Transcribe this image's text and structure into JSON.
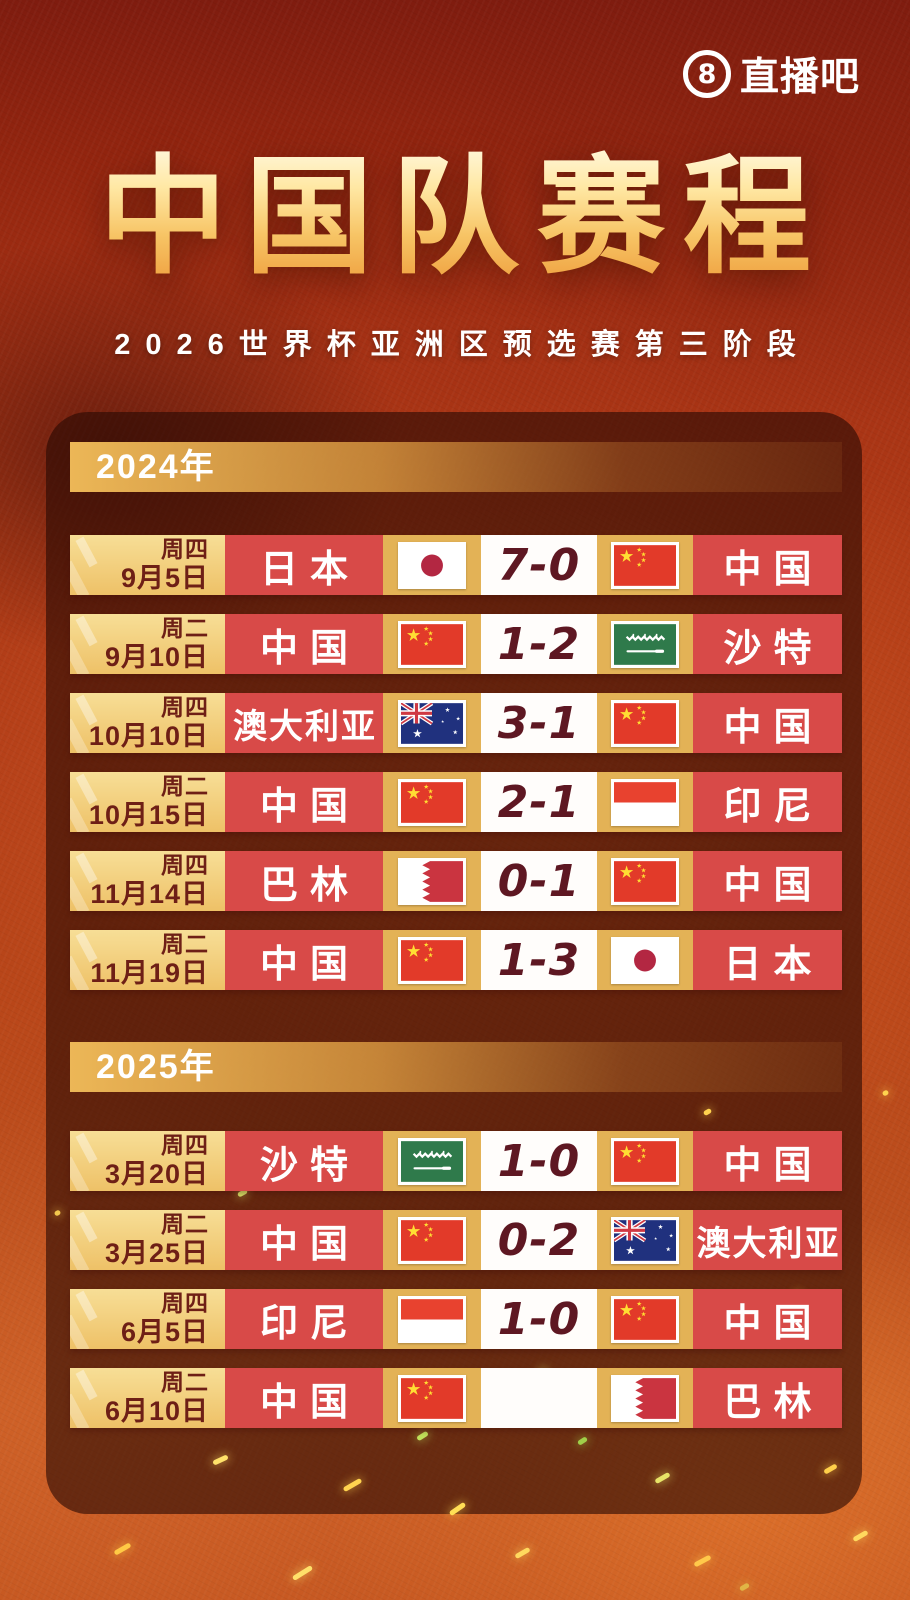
{
  "header": {
    "logo_number": "8",
    "logo_text": "直播吧"
  },
  "title": "中国队赛程",
  "subtitle": "2026世界杯亚洲区预选赛第三阶段",
  "colors": {
    "background_red": "#a53114",
    "panel_maroon": "#5e200e",
    "gold_flag_cell": "#e3b256",
    "gold_date_cell": "#f3d484",
    "team_cell_red": "#d84a48",
    "score_text": "#5e1722",
    "date_text": "#6e1f16",
    "section_bar_gold": "#ecb757",
    "title_gradient_top": "#fff6d8",
    "title_gradient_bottom": "#ee9d3c"
  },
  "sections": [
    {
      "year": "2024年",
      "matches": [
        {
          "weekday": "周四",
          "date": "9月5日",
          "home": "日本",
          "home_flag": "japan",
          "score": "7-0",
          "away_flag": "china",
          "away": "中国"
        },
        {
          "weekday": "周二",
          "date": "9月10日",
          "home": "中国",
          "home_flag": "china",
          "score": "1-2",
          "away_flag": "saudi",
          "away": "沙特"
        },
        {
          "weekday": "周四",
          "date": "10月10日",
          "home": "澳大利亚",
          "home_flag": "australia",
          "score": "3-1",
          "away_flag": "china",
          "away": "中国"
        },
        {
          "weekday": "周二",
          "date": "10月15日",
          "home": "中国",
          "home_flag": "china",
          "score": "2-1",
          "away_flag": "indonesia",
          "away": "印尼"
        },
        {
          "weekday": "周四",
          "date": "11月14日",
          "home": "巴林",
          "home_flag": "bahrain",
          "score": "0-1",
          "away_flag": "china",
          "away": "中国"
        },
        {
          "weekday": "周二",
          "date": "11月19日",
          "home": "中国",
          "home_flag": "china",
          "score": "1-3",
          "away_flag": "japan",
          "away": "日本"
        }
      ]
    },
    {
      "year": "2025年",
      "matches": [
        {
          "weekday": "周四",
          "date": "3月20日",
          "home": "沙特",
          "home_flag": "saudi",
          "score": "1-0",
          "away_flag": "china",
          "away": "中国"
        },
        {
          "weekday": "周二",
          "date": "3月25日",
          "home": "中国",
          "home_flag": "china",
          "score": "0-2",
          "away_flag": "australia",
          "away": "澳大利亚"
        },
        {
          "weekday": "周四",
          "date": "6月5日",
          "home": "印尼",
          "home_flag": "indonesia",
          "score": "1-0",
          "away_flag": "china",
          "away": "中国"
        },
        {
          "weekday": "周二",
          "date": "6月10日",
          "home": "中国",
          "home_flag": "china",
          "score": "",
          "away_flag": "bahrain",
          "away": "巴林"
        }
      ]
    }
  ]
}
